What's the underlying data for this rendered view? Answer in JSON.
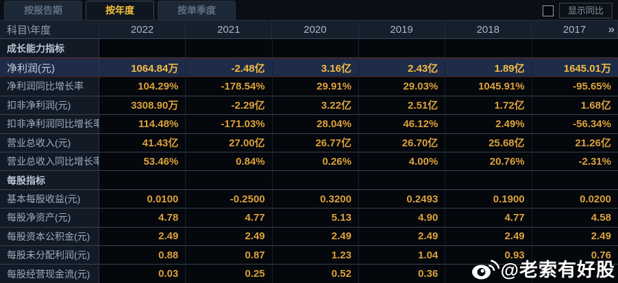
{
  "tabs": [
    {
      "label": "按报告期",
      "active": false
    },
    {
      "label": "按年度",
      "active": true
    },
    {
      "label": "按单季度",
      "active": false
    }
  ],
  "controls": {
    "show_yoy_label": "显示同比",
    "checkbox_checked": false
  },
  "table": {
    "corner_header": "科目\\年度",
    "years": [
      "2022",
      "2021",
      "2020",
      "2019",
      "2018",
      "2017"
    ],
    "more_icon": "»",
    "rows": [
      {
        "type": "section",
        "label": "成长能力指标",
        "values": [
          "",
          "",
          "",
          "",
          "",
          ""
        ]
      },
      {
        "type": "data",
        "highlight": true,
        "label": "净利润(元)",
        "values": [
          "1064.84万",
          "-2.48亿",
          "3.16亿",
          "2.43亿",
          "1.89亿",
          "1645.01万"
        ]
      },
      {
        "type": "data",
        "highlight": false,
        "label": "净利润同比增长率",
        "values": [
          "104.29%",
          "-178.54%",
          "29.91%",
          "29.03%",
          "1045.91%",
          "-95.65%"
        ]
      },
      {
        "type": "data",
        "highlight": false,
        "label": "扣非净利润(元)",
        "values": [
          "3308.90万",
          "-2.29亿",
          "3.22亿",
          "2.51亿",
          "1.72亿",
          "1.68亿"
        ]
      },
      {
        "type": "data",
        "highlight": false,
        "label": "扣非净利润同比增长率",
        "values": [
          "114.48%",
          "-171.03%",
          "28.04%",
          "46.12%",
          "2.49%",
          "-56.34%"
        ]
      },
      {
        "type": "data",
        "highlight": false,
        "label": "营业总收入(元)",
        "values": [
          "41.43亿",
          "27.00亿",
          "26.77亿",
          "26.70亿",
          "25.68亿",
          "21.26亿"
        ]
      },
      {
        "type": "data",
        "highlight": false,
        "label": "营业总收入同比增长率",
        "values": [
          "53.46%",
          "0.84%",
          "0.26%",
          "4.00%",
          "20.76%",
          "-2.31%"
        ]
      },
      {
        "type": "section",
        "label": "每股指标",
        "values": [
          "",
          "",
          "",
          "",
          "",
          ""
        ]
      },
      {
        "type": "data",
        "highlight": false,
        "label": "基本每股收益(元)",
        "values": [
          "0.0100",
          "-0.2500",
          "0.3200",
          "0.2493",
          "0.1900",
          "0.0200"
        ]
      },
      {
        "type": "data",
        "highlight": false,
        "label": "每股净资产(元)",
        "values": [
          "4.78",
          "4.77",
          "5.13",
          "4.90",
          "4.77",
          "4.58"
        ]
      },
      {
        "type": "data",
        "highlight": false,
        "label": "每股资本公积金(元)",
        "values": [
          "2.49",
          "2.49",
          "2.49",
          "2.49",
          "2.49",
          "2.49"
        ]
      },
      {
        "type": "data",
        "highlight": false,
        "label": "每股未分配利润(元)",
        "values": [
          "0.88",
          "0.87",
          "1.23",
          "1.04",
          "0.93",
          "0.76"
        ]
      },
      {
        "type": "data",
        "highlight": false,
        "label": "每股经营现金流(元)",
        "values": [
          "0.03",
          "0.25",
          "0.52",
          "0.36",
          "",
          ""
        ]
      }
    ]
  },
  "watermark": {
    "handle": "@老索有好股",
    "icon": "weibo-icon"
  },
  "colors": {
    "accent_gold": "#f2c23a",
    "value_gold": "#dda23c",
    "highlight_row_bg": "#1e2c49",
    "highlight_row_border": "#4c1a10",
    "header_bg": "#161f2c",
    "label_col_bg": "#121a26",
    "cell_bg": "#04070b"
  }
}
